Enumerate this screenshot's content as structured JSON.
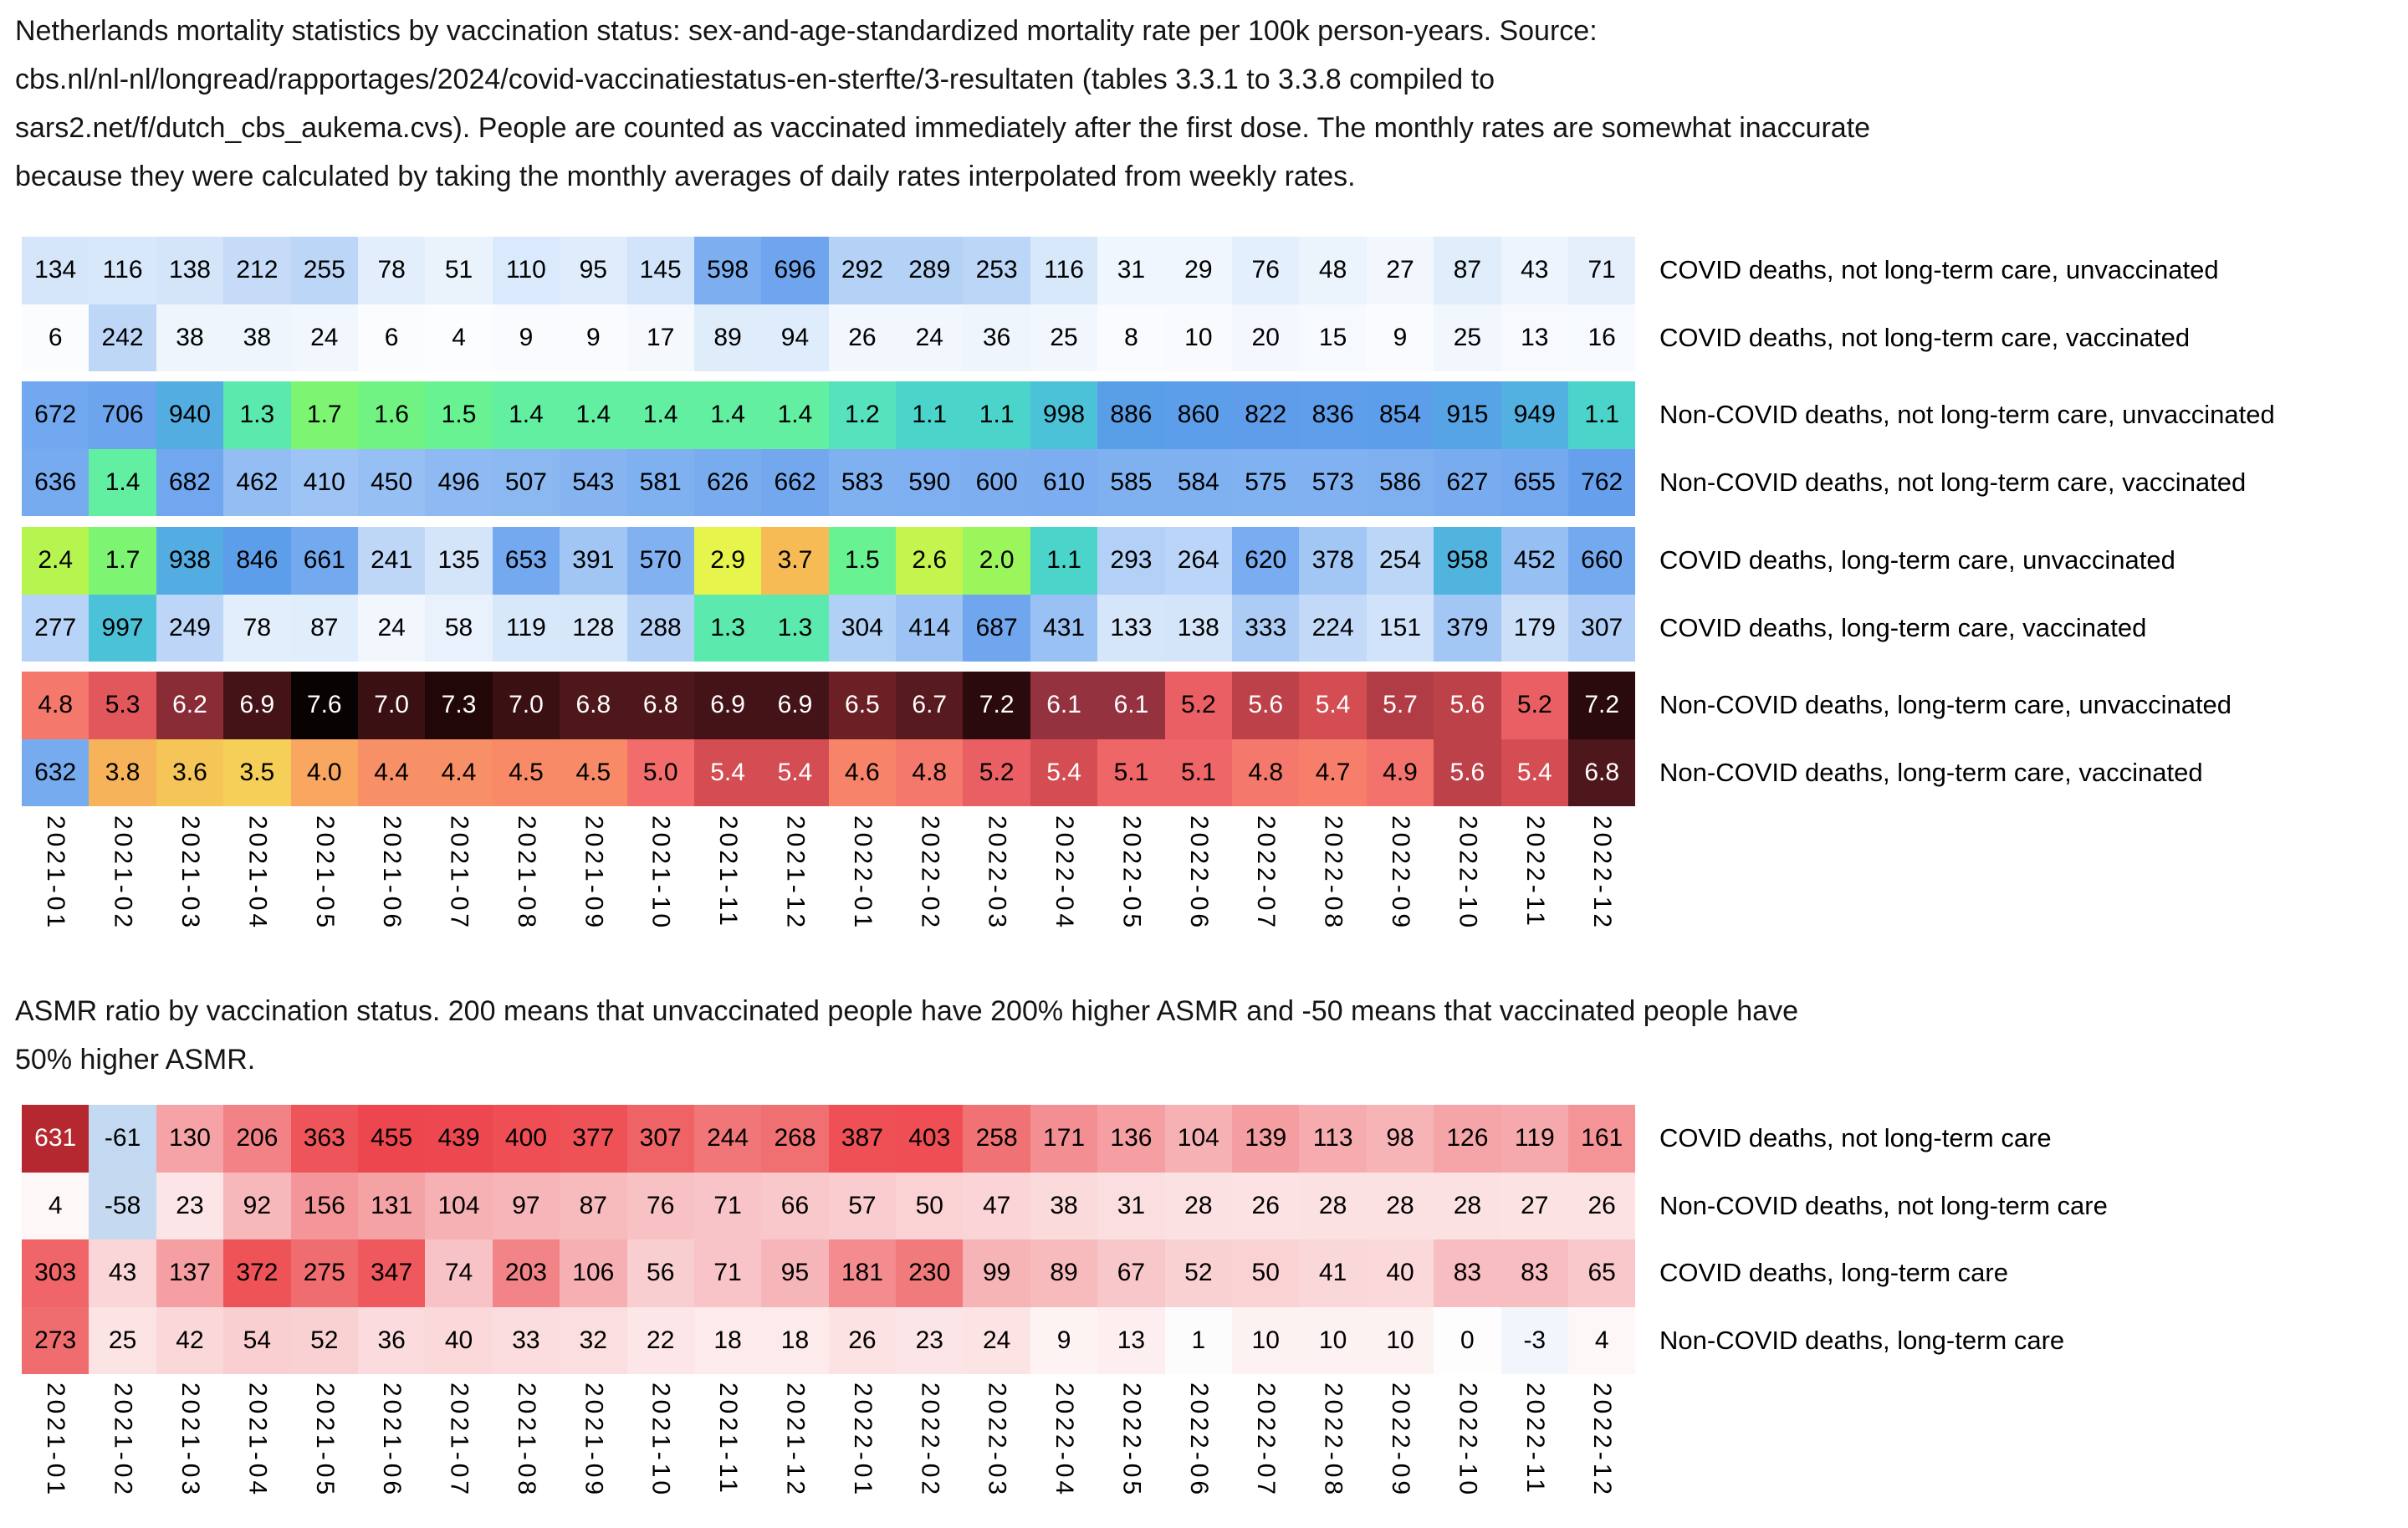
{
  "header": {
    "lines": [
      "Netherlands mortality statistics by vaccination status: sex-and-age-standardized mortality rate per 100k person-years. Source:",
      "cbs.nl/nl-nl/longread/rapportages/2024/covid-vaccinatiestatus-en-sterfte/3-resultaten (tables 3.3.1 to 3.3.8 compiled to",
      "sars2.net/f/dutch_cbs_aukema.cvs). People are counted as vaccinated immediately after the first dose. The monthly rates are somewhat inaccurate",
      "because they were calculated by taking the monthly averages of daily rates interpolated from weekly rates."
    ]
  },
  "subtitle": {
    "lines": [
      "ASMR ratio by vaccination status. 200 means that unvaccinated people have 200% higher ASMR and -50 means that vaccinated people have",
      "50% higher ASMR."
    ]
  },
  "months": [
    "2021-01",
    "2021-02",
    "2021-03",
    "2021-04",
    "2021-05",
    "2021-06",
    "2021-07",
    "2021-08",
    "2021-09",
    "2021-10",
    "2021-11",
    "2021-12",
    "2022-01",
    "2022-02",
    "2022-03",
    "2022-04",
    "2022-05",
    "2022-06",
    "2022-07",
    "2022-08",
    "2022-09",
    "2022-10",
    "2022-11",
    "2022-12"
  ],
  "chart_data": [
    {
      "type": "heatmap",
      "x_tick_labels": [
        "2021-01",
        "2021-02",
        "2021-03",
        "2021-04",
        "2021-05",
        "2021-06",
        "2021-07",
        "2021-08",
        "2021-09",
        "2021-10",
        "2021-11",
        "2021-12",
        "2022-01",
        "2022-02",
        "2022-03",
        "2022-04",
        "2022-05",
        "2022-06",
        "2022-07",
        "2022-08",
        "2022-09",
        "2022-10",
        "2022-11",
        "2022-12"
      ],
      "rows": [
        {
          "label": "COVID deaths, not long-term care, unvaccinated",
          "values": [
            "134",
            "116",
            "138",
            "212",
            "255",
            "78",
            "51",
            "110",
            "95",
            "145",
            "598",
            "696",
            "292",
            "289",
            "253",
            "116",
            "31",
            "29",
            "76",
            "48",
            "27",
            "87",
            "43",
            "71"
          ]
        },
        {
          "label": "COVID deaths, not long-term care, vaccinated",
          "values": [
            "6",
            "242",
            "38",
            "38",
            "24",
            "6",
            "4",
            "9",
            "9",
            "17",
            "89",
            "94",
            "26",
            "24",
            "36",
            "25",
            "8",
            "10",
            "20",
            "15",
            "9",
            "25",
            "13",
            "16"
          ]
        },
        {
          "label": "Non-COVID deaths, not long-term care, unvaccinated",
          "values": [
            "672",
            "706",
            "940",
            "1.3",
            "1.7",
            "1.6",
            "1.5",
            "1.4",
            "1.4",
            "1.4",
            "1.4",
            "1.4",
            "1.2",
            "1.1",
            "1.1",
            "998",
            "886",
            "860",
            "822",
            "836",
            "854",
            "915",
            "949",
            "1.1"
          ]
        },
        {
          "label": "Non-COVID deaths, not long-term care, vaccinated",
          "values": [
            "636",
            "1.4",
            "682",
            "462",
            "410",
            "450",
            "496",
            "507",
            "543",
            "581",
            "626",
            "662",
            "583",
            "590",
            "600",
            "610",
            "585",
            "584",
            "575",
            "573",
            "586",
            "627",
            "655",
            "762"
          ]
        },
        {
          "label": "COVID deaths, long-term care, unvaccinated",
          "values": [
            "2.4",
            "1.7",
            "938",
            "846",
            "661",
            "241",
            "135",
            "653",
            "391",
            "570",
            "2.9",
            "3.7",
            "1.5",
            "2.6",
            "2.0",
            "1.1",
            "293",
            "264",
            "620",
            "378",
            "254",
            "958",
            "452",
            "660"
          ]
        },
        {
          "label": "COVID deaths, long-term care, vaccinated",
          "values": [
            "277",
            "997",
            "249",
            "78",
            "87",
            "24",
            "58",
            "119",
            "128",
            "288",
            "1.3",
            "1.3",
            "304",
            "414",
            "687",
            "431",
            "133",
            "138",
            "333",
            "224",
            "151",
            "379",
            "179",
            "307"
          ]
        },
        {
          "label": "Non-COVID deaths, long-term care, unvaccinated",
          "values": [
            "4.8",
            "5.3",
            "6.2",
            "6.9",
            "7.6",
            "7.0",
            "7.3",
            "7.0",
            "6.8",
            "6.8",
            "6.9",
            "6.9",
            "6.5",
            "6.7",
            "7.2",
            "6.1",
            "6.1",
            "5.2",
            "5.6",
            "5.4",
            "5.7",
            "5.6",
            "5.2",
            "7.2"
          ]
        },
        {
          "label": "Non-COVID deaths, long-term care, vaccinated",
          "values": [
            "632",
            "3.8",
            "3.6",
            "3.5",
            "4.0",
            "4.4",
            "4.4",
            "4.5",
            "4.5",
            "5.0",
            "5.4",
            "5.4",
            "4.6",
            "4.8",
            "5.2",
            "5.4",
            "5.1",
            "5.1",
            "4.8",
            "4.7",
            "4.9",
            "5.6",
            "5.4",
            "6.8"
          ]
        }
      ],
      "color_stops": [
        [
          0,
          "#ffffff"
        ],
        [
          10,
          "#f8fafe"
        ],
        [
          30,
          "#f0f6fd"
        ],
        [
          60,
          "#e8f1fc"
        ],
        [
          100,
          "#dcebfb"
        ],
        [
          150,
          "#d1e3fa"
        ],
        [
          220,
          "#c3daf8"
        ],
        [
          300,
          "#b2d0f6"
        ],
        [
          400,
          "#9fc5f4"
        ],
        [
          500,
          "#8db9f2"
        ],
        [
          600,
          "#7caef0"
        ],
        [
          700,
          "#6da5ee"
        ],
        [
          800,
          "#619dec"
        ],
        [
          900,
          "#589fe7"
        ],
        [
          1000,
          "#4cc3d9"
        ],
        [
          1100,
          "#4bd5ca"
        ],
        [
          1200,
          "#55e2bd"
        ],
        [
          1300,
          "#5ce9ae"
        ],
        [
          1400,
          "#62efa2"
        ],
        [
          1500,
          "#68f292"
        ],
        [
          1600,
          "#71f383"
        ],
        [
          1700,
          "#7ef473"
        ],
        [
          1800,
          "#8bf566"
        ],
        [
          2000,
          "#9af65a"
        ],
        [
          2200,
          "#a8f654"
        ],
        [
          2400,
          "#b6f550"
        ],
        [
          2600,
          "#c6f44e"
        ],
        [
          2900,
          "#e6f44b"
        ],
        [
          3100,
          "#f2ea4f"
        ],
        [
          3300,
          "#f5dc55"
        ],
        [
          3500,
          "#f6cf58"
        ],
        [
          3700,
          "#f6bb55"
        ],
        [
          3900,
          "#f7ab5d"
        ],
        [
          4100,
          "#f8a062"
        ],
        [
          4400,
          "#f89067"
        ],
        [
          4600,
          "#f78369"
        ],
        [
          4800,
          "#f5786c"
        ],
        [
          5000,
          "#f26c6c"
        ],
        [
          5200,
          "#ea5f63"
        ],
        [
          5300,
          "#e2575c"
        ],
        [
          5400,
          "#d34d53"
        ],
        [
          5600,
          "#bd4149"
        ],
        [
          5700,
          "#b23c45"
        ],
        [
          5900,
          "#a33741"
        ],
        [
          6100,
          "#953240"
        ],
        [
          6200,
          "#8a2c36"
        ],
        [
          6400,
          "#752329"
        ],
        [
          6500,
          "#6c2026"
        ],
        [
          6700,
          "#571a1f"
        ],
        [
          6800,
          "#4d171b"
        ],
        [
          6900,
          "#431317"
        ],
        [
          7000,
          "#3a1013"
        ],
        [
          7100,
          "#310d10"
        ],
        [
          7200,
          "#2a0a0c"
        ],
        [
          7300,
          "#220709"
        ],
        [
          7400,
          "#190506"
        ],
        [
          7600,
          "#080202"
        ]
      ],
      "white_text_luminance": 0.47
    },
    {
      "type": "heatmap",
      "x_tick_labels": [
        "2021-01",
        "2021-02",
        "2021-03",
        "2021-04",
        "2021-05",
        "2021-06",
        "2021-07",
        "2021-08",
        "2021-09",
        "2021-10",
        "2021-11",
        "2021-12",
        "2022-01",
        "2022-02",
        "2022-03",
        "2022-04",
        "2022-05",
        "2022-06",
        "2022-07",
        "2022-08",
        "2022-09",
        "2022-10",
        "2022-11",
        "2022-12"
      ],
      "rows": [
        {
          "label": "COVID deaths, not long-term care",
          "values": [
            "631",
            "-61",
            "130",
            "206",
            "363",
            "455",
            "439",
            "400",
            "377",
            "307",
            "244",
            "268",
            "387",
            "403",
            "258",
            "171",
            "136",
            "104",
            "139",
            "113",
            "98",
            "126",
            "119",
            "161"
          ]
        },
        {
          "label": "Non-COVID deaths, not long-term care",
          "values": [
            "4",
            "-58",
            "23",
            "92",
            "156",
            "131",
            "104",
            "97",
            "87",
            "76",
            "71",
            "66",
            "57",
            "50",
            "47",
            "38",
            "31",
            "28",
            "26",
            "28",
            "28",
            "28",
            "27",
            "26"
          ]
        },
        {
          "label": "COVID deaths, long-term care",
          "values": [
            "303",
            "43",
            "137",
            "372",
            "275",
            "347",
            "74",
            "203",
            "106",
            "56",
            "71",
            "95",
            "181",
            "230",
            "99",
            "89",
            "67",
            "52",
            "50",
            "41",
            "40",
            "83",
            "83",
            "65"
          ]
        },
        {
          "label": "Non-COVID deaths, long-term care",
          "values": [
            "273",
            "25",
            "42",
            "54",
            "52",
            "36",
            "40",
            "33",
            "32",
            "22",
            "18",
            "18",
            "26",
            "23",
            "24",
            "9",
            "13",
            "1",
            "10",
            "10",
            "10",
            "0",
            "-3",
            "4"
          ]
        }
      ],
      "color_stops": [
        [
          -65,
          "#c0d7f0"
        ],
        [
          -30,
          "#d8e7f6"
        ],
        [
          -5,
          "#e9f1fa"
        ],
        [
          0,
          "#fdfdfe"
        ],
        [
          5,
          "#fdf6f6"
        ],
        [
          12,
          "#fdf0f0"
        ],
        [
          25,
          "#fce3e4"
        ],
        [
          45,
          "#fad5d7"
        ],
        [
          70,
          "#f8c5c8"
        ],
        [
          100,
          "#f6b3b6"
        ],
        [
          140,
          "#f59da0"
        ],
        [
          180,
          "#f38b8f"
        ],
        [
          230,
          "#f17a7c"
        ],
        [
          280,
          "#f06b6d"
        ],
        [
          330,
          "#ef5d61"
        ],
        [
          380,
          "#ee5156"
        ],
        [
          440,
          "#ed4850"
        ],
        [
          470,
          "#ec434c"
        ],
        [
          560,
          "#d03740"
        ],
        [
          640,
          "#b2262e"
        ]
      ],
      "white_text_luminance": 0.4
    }
  ]
}
